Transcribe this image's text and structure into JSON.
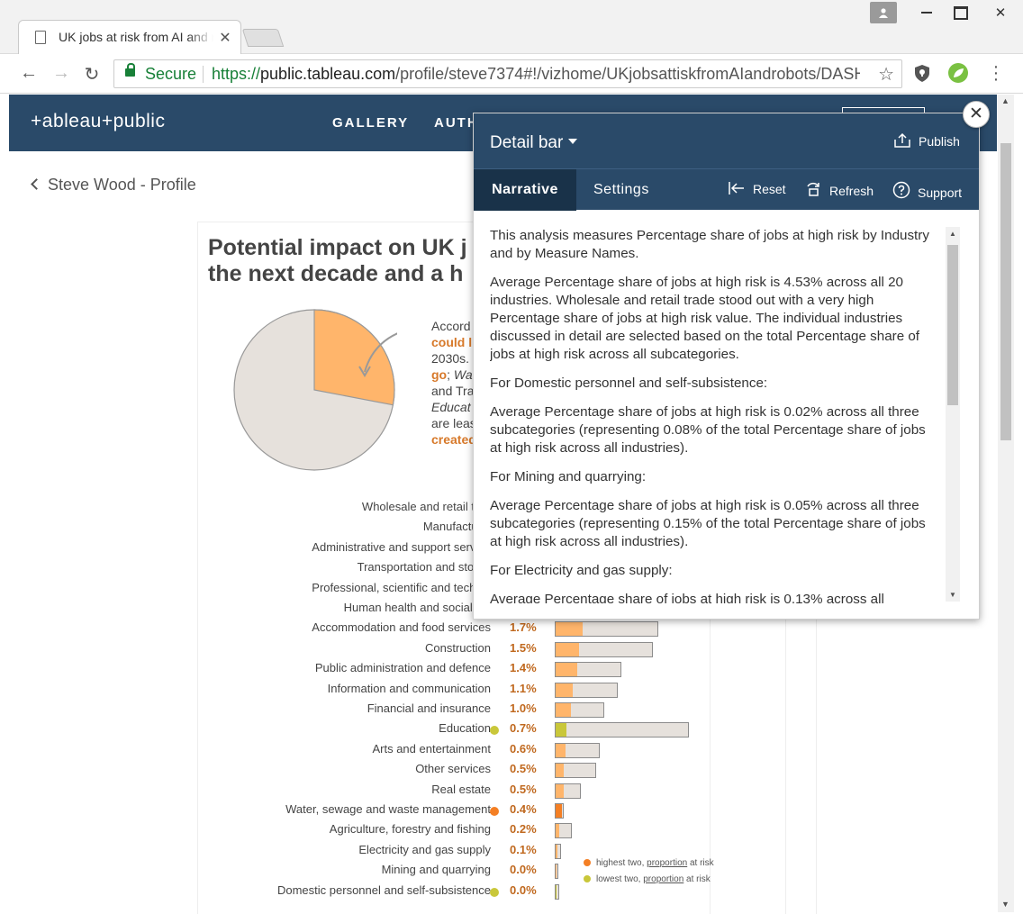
{
  "browser": {
    "tab_title": "UK jobs at risk from AI and robots",
    "secure_label": "Secure",
    "url_origin": "https://",
    "url_host": "public.tableau.com",
    "url_path": "/profile/steve7374#!/vizhome/UKjobsattiskfromAIandrobots/DASH"
  },
  "site": {
    "logo": "+ableau+public",
    "nav": [
      "GALLERY",
      "AUTH"
    ],
    "back_link": "Steve Wood - Profile"
  },
  "dashboard": {
    "title_line1": "Potential impact on UK j",
    "title_line2": "the next decade and a h",
    "callout": {
      "l1": "Accord",
      "l2": "could l",
      "l3": "2030s.",
      "l4a": "go",
      "l4b": "; ",
      "l4c": "Wa",
      "l5": "and Tra",
      "l6": "Educat",
      "l7": "are leas",
      "l8": "created"
    },
    "pie": {
      "share_at_risk": 0.28
    },
    "legend": {
      "highest": [
        "highest two, ",
        "proportion",
        " at risk"
      ],
      "lowest": [
        "lowest two, ",
        "proportion",
        " at risk"
      ],
      "highest_color": "#f47f24",
      "lowest_color": "#c9c73a"
    },
    "rows": [
      {
        "label": "Wholesale and retail trac",
        "pct": "",
        "dot": "",
        "fill": 0,
        "total": 0
      },
      {
        "label": "Manufacturin",
        "pct": "",
        "dot": "",
        "fill": 0,
        "total": 0
      },
      {
        "label": "Administrative and support service",
        "pct": "",
        "dot": "",
        "fill": 0,
        "total": 0
      },
      {
        "label": "Transportation and storag",
        "pct": "",
        "dot": "",
        "fill": 0,
        "total": 0
      },
      {
        "label": "Professional, scientific and technic",
        "pct": "",
        "dot": "",
        "fill": 0,
        "total": 0
      },
      {
        "label": "Human health and social wo",
        "pct": "",
        "dot": "",
        "fill": 0,
        "total": 0
      },
      {
        "label": "Accommodation and food services",
        "pct": "1.7%",
        "dot": "",
        "fill": 30,
        "total": 115
      },
      {
        "label": "Construction",
        "pct": "1.5%",
        "dot": "",
        "fill": 26,
        "total": 109
      },
      {
        "label": "Public administration and defence",
        "pct": "1.4%",
        "dot": "",
        "fill": 24,
        "total": 74
      },
      {
        "label": "Information and communication",
        "pct": "1.1%",
        "dot": "",
        "fill": 19,
        "total": 70
      },
      {
        "label": "Financial and insurance",
        "pct": "1.0%",
        "dot": "",
        "fill": 17,
        "total": 55
      },
      {
        "label": "Education",
        "pct": "0.7%",
        "dot": "low",
        "fill": 12,
        "total": 149
      },
      {
        "label": "Arts and entertainment",
        "pct": "0.6%",
        "dot": "",
        "fill": 11,
        "total": 50
      },
      {
        "label": "Other services",
        "pct": "0.5%",
        "dot": "",
        "fill": 9,
        "total": 46
      },
      {
        "label": "Real estate",
        "pct": "0.5%",
        "dot": "",
        "fill": 9,
        "total": 29
      },
      {
        "label": "Water, sewage and waste management",
        "pct": "0.4%",
        "dot": "high",
        "fill": 7,
        "total": 10
      },
      {
        "label": "Agriculture, forestry and fishing",
        "pct": "0.2%",
        "dot": "",
        "fill": 4,
        "total": 19
      },
      {
        "label": "Electricity and gas supply",
        "pct": "0.1%",
        "dot": "",
        "fill": 2,
        "total": 7
      },
      {
        "label": "Mining and quarrying",
        "pct": "0.0%",
        "dot": "",
        "fill": 1,
        "total": 4
      },
      {
        "label": "Domestic personnel and self-subsistence",
        "pct": "0.0%",
        "dot": "low",
        "fill": 1,
        "total": 5
      }
    ]
  },
  "detail_bar": {
    "title": "Detail bar",
    "publish": "Publish",
    "tabs": [
      "Narrative",
      "Settings"
    ],
    "actions": [
      "Reset",
      "Refresh",
      "Support"
    ],
    "paragraphs": [
      "This analysis measures Percentage share of jobs at high risk by Industry and by Measure Names.",
      "Average Percentage share of jobs at high risk is 4.53% across all 20 industries. Wholesale and retail trade stood out with a very high Percentage share of jobs at high risk value. The individual industries discussed in detail are selected based on the total Percentage share of jobs at high risk across all subcategories.",
      "For Domestic personnel and self-subsistence:",
      "Average Percentage share of jobs at high risk is 0.02% across all three subcategories (representing 0.08% of the total Percentage share of jobs at high risk across all industries).",
      "For Mining and quarrying:",
      "Average Percentage share of jobs at high risk is 0.05% across all three subcategories (representing 0.15% of the total Percentage share of jobs at high risk across all industries).",
      "For Electricity and gas supply:",
      "Average Percentage share of jobs at high risk is 0.13% across all"
    ]
  }
}
